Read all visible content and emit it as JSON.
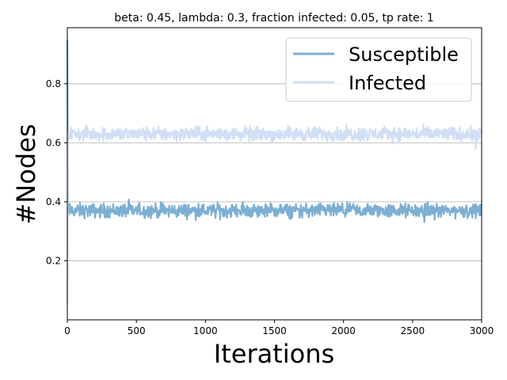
{
  "chart_data": {
    "type": "line",
    "title": "beta: 0.45, lambda: 0.3, fraction infected: 0.05, tp rate: 1",
    "xlabel": "Iterations",
    "ylabel": "#Nodes",
    "xlim": [
      0,
      3000
    ],
    "ylim": [
      0,
      0.99
    ],
    "xticks": [
      "0",
      "500",
      "1000",
      "1500",
      "2000",
      "2500",
      "3000"
    ],
    "yticks": [
      "0.2",
      "0.4",
      "0.6",
      "0.8"
    ],
    "grid": "horizontal",
    "legend_position": "top-right",
    "series": [
      {
        "name": "Susceptible",
        "color": "#7bafd4",
        "start": 0.95,
        "mean": 0.37,
        "noise": 0.025
      },
      {
        "name": "Infected",
        "color": "#d0dff5",
        "start": 0.05,
        "mean": 0.63,
        "noise": 0.025
      }
    ]
  }
}
